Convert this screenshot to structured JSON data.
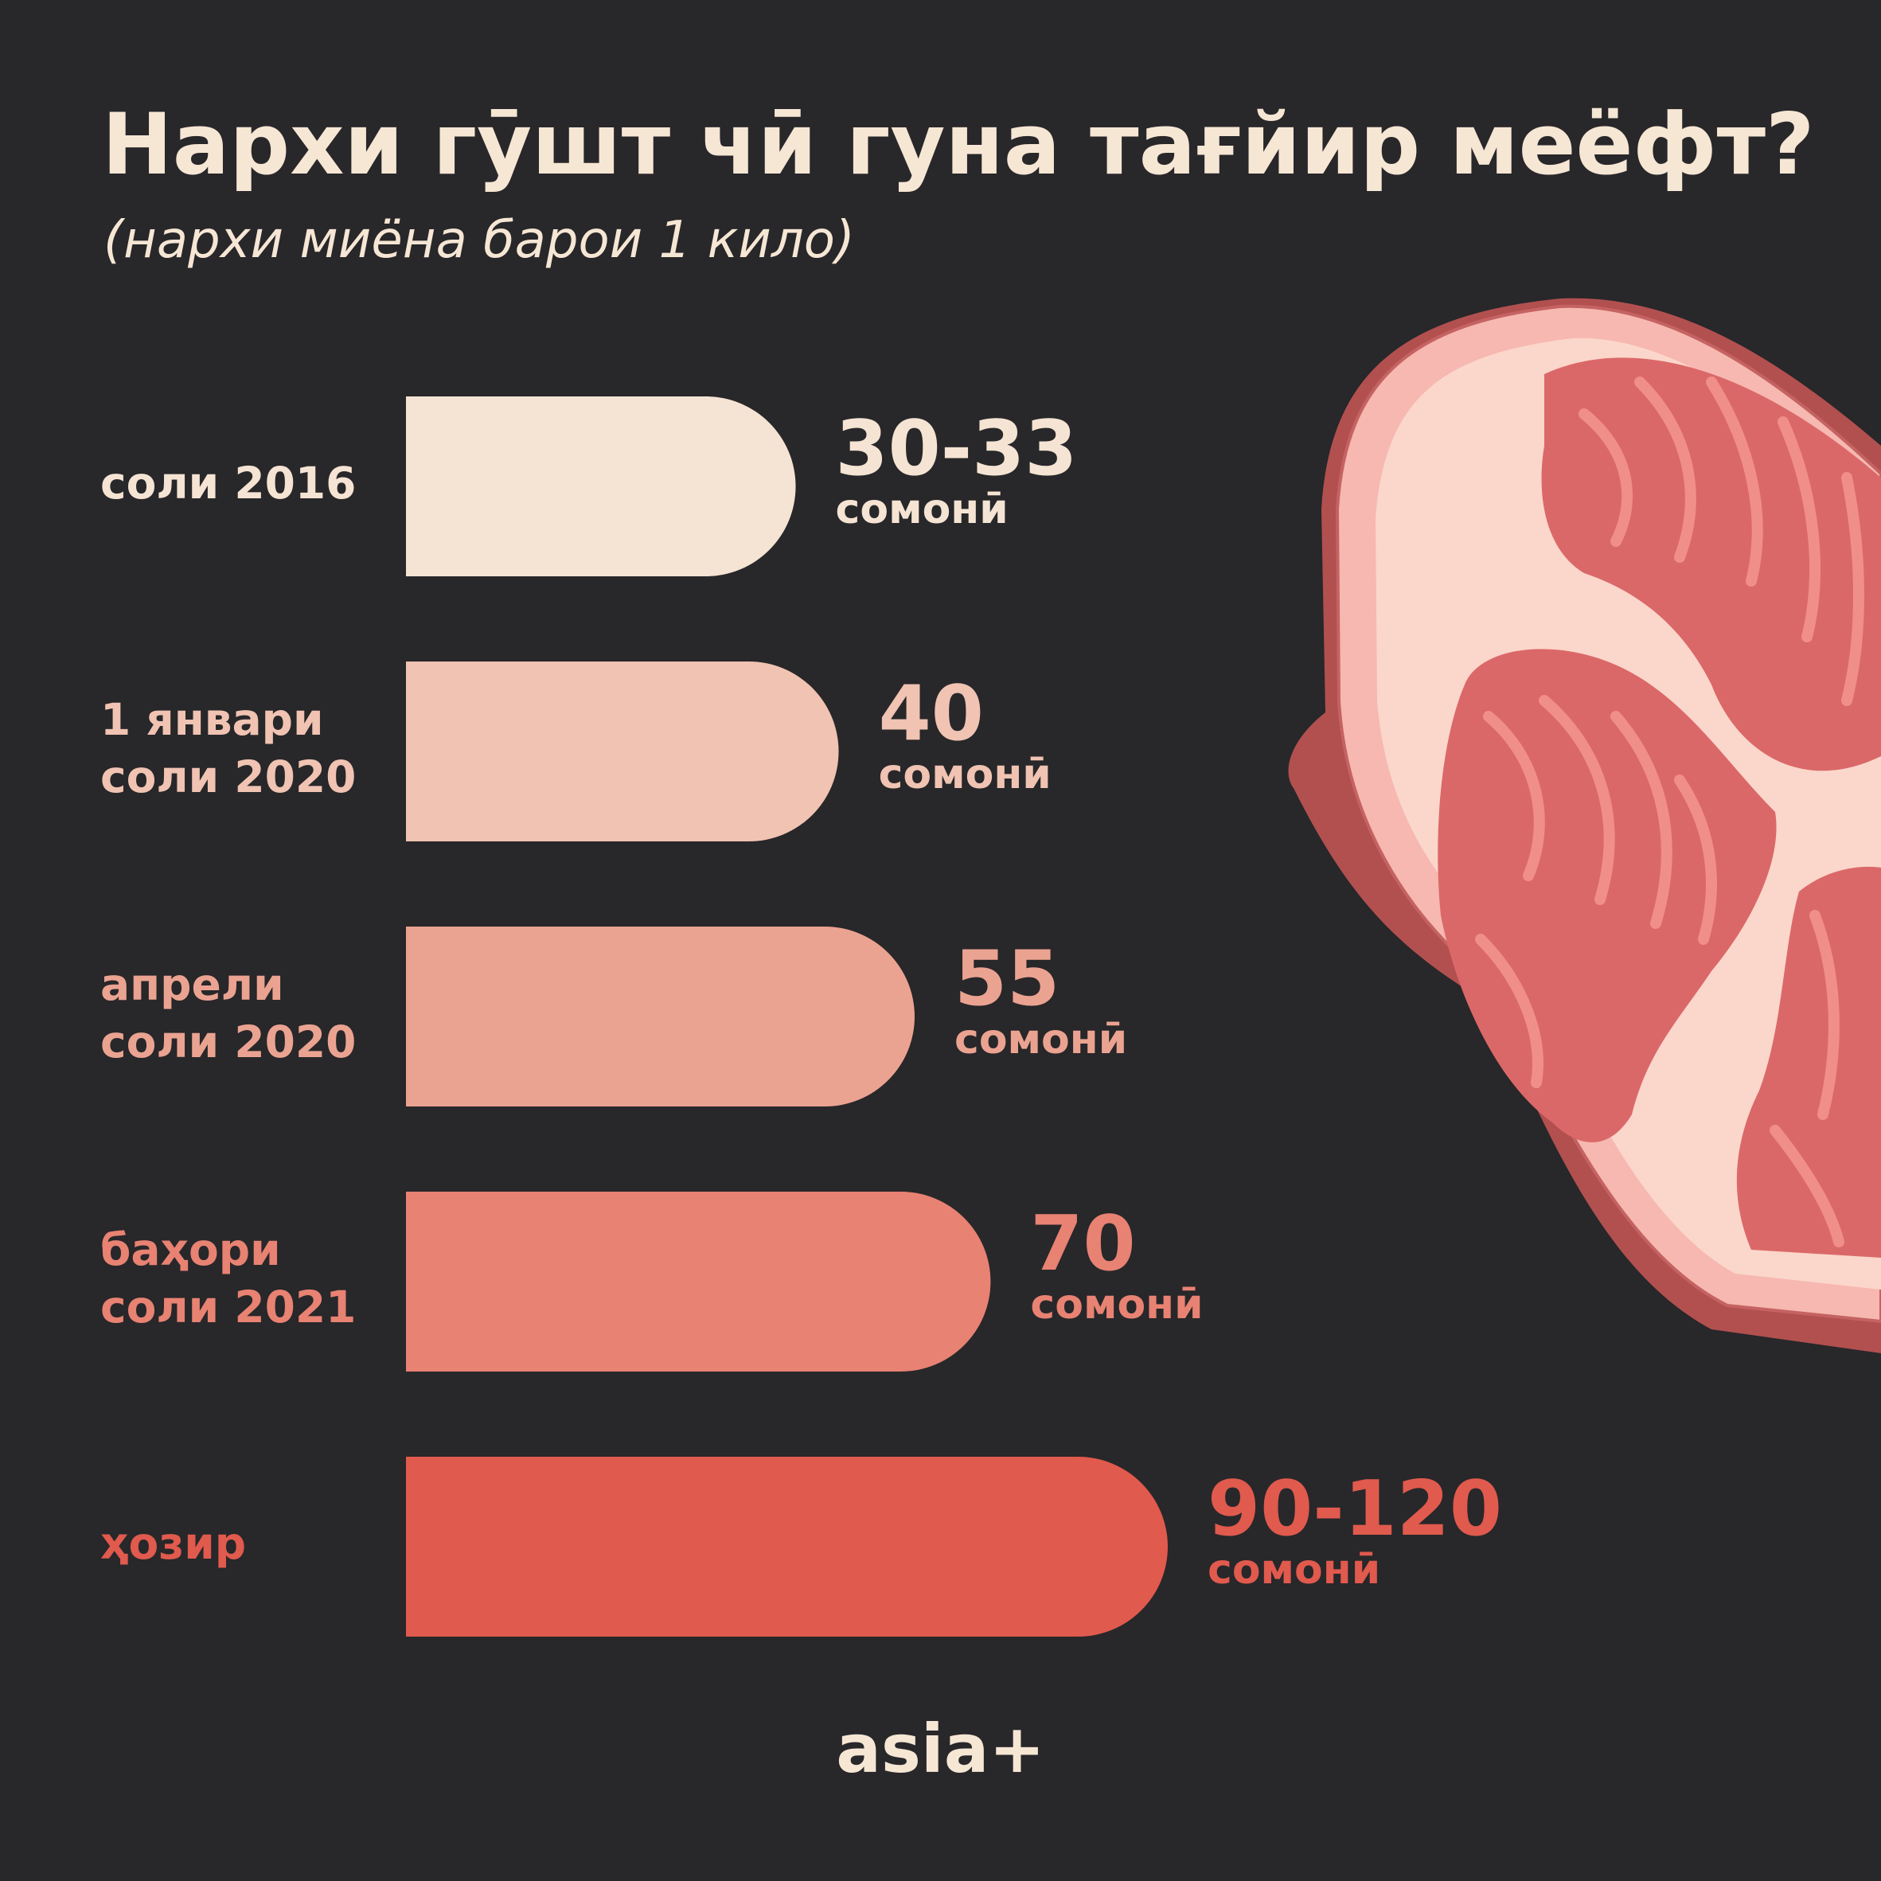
{
  "title": "Нархи гӯшт чӣ гуна тағйир меёфт?",
  "subtitle": "(нархи миёна барои 1 кило)",
  "brand": "asia+",
  "chart_data": {
    "type": "bar",
    "orientation": "horizontal",
    "title": "Нархи гӯшт чӣ гуна тағйир меёфт?",
    "subtitle": "(нархи миёна барои 1 кило)",
    "categories": [
      "соли 2016",
      "1 январи\nсоли 2020",
      "апрели\nсоли 2020",
      "баҳори\nсоли 2021",
      "ҳозир"
    ],
    "value_labels": [
      "30-33",
      "40",
      "55",
      "70",
      "90-120"
    ],
    "unit": "сомонӣ",
    "values": [
      31.5,
      40,
      55,
      70,
      105
    ],
    "colors": [
      "#f5e4d3",
      "#f0c3b2",
      "#eba391",
      "#e88272",
      "#e05a4d"
    ],
    "grid": false,
    "legend": "none"
  }
}
